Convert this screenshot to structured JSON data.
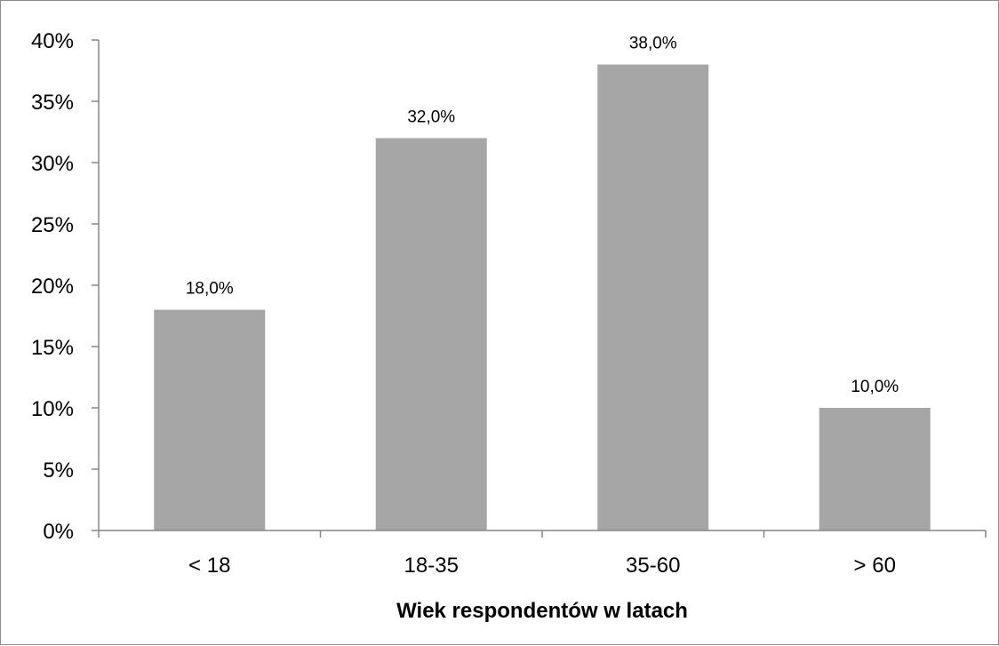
{
  "chart_data": {
    "type": "bar",
    "categories": [
      "< 18",
      "18-35",
      "35-60",
      "> 60"
    ],
    "values": [
      18.0,
      32.0,
      38.0,
      10.0
    ],
    "data_labels": [
      "18,0%",
      "32,0%",
      "38,0%",
      "10,0%"
    ],
    "title": "",
    "xlabel": "Wiek respondentów w latach",
    "ylabel": "",
    "ylim": [
      0,
      40
    ],
    "yticks": [
      "0%",
      "5%",
      "10%",
      "15%",
      "20%",
      "25%",
      "30%",
      "35%",
      "40%"
    ],
    "grid": false,
    "legend": "none",
    "bar_color": "#a6a6a6",
    "axis_color": "#868686"
  }
}
